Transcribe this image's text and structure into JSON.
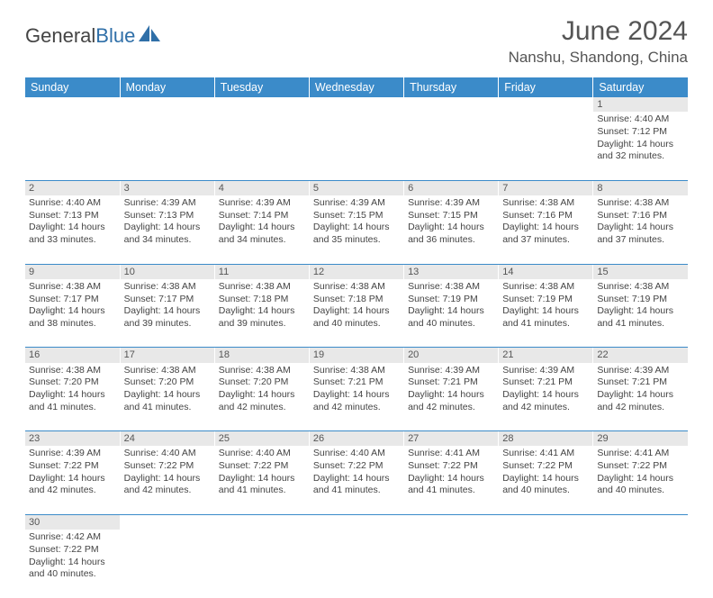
{
  "brand": {
    "part1": "General",
    "part2": "Blue"
  },
  "title": "June 2024",
  "location": "Nanshu, Shandong, China",
  "header_bg": "#3b8bc9",
  "header_fg": "#ffffff",
  "daynum_bg": "#e8e8e8",
  "divider_color": "#3b8bc9",
  "text_color": "#444444",
  "day_headers": [
    "Sunday",
    "Monday",
    "Tuesday",
    "Wednesday",
    "Thursday",
    "Friday",
    "Saturday"
  ],
  "weeks": [
    [
      null,
      null,
      null,
      null,
      null,
      null,
      {
        "n": "1",
        "sr": "4:40 AM",
        "ss": "7:12 PM",
        "dl": "14 hours and 32 minutes."
      }
    ],
    [
      {
        "n": "2",
        "sr": "4:40 AM",
        "ss": "7:13 PM",
        "dl": "14 hours and 33 minutes."
      },
      {
        "n": "3",
        "sr": "4:39 AM",
        "ss": "7:13 PM",
        "dl": "14 hours and 34 minutes."
      },
      {
        "n": "4",
        "sr": "4:39 AM",
        "ss": "7:14 PM",
        "dl": "14 hours and 34 minutes."
      },
      {
        "n": "5",
        "sr": "4:39 AM",
        "ss": "7:15 PM",
        "dl": "14 hours and 35 minutes."
      },
      {
        "n": "6",
        "sr": "4:39 AM",
        "ss": "7:15 PM",
        "dl": "14 hours and 36 minutes."
      },
      {
        "n": "7",
        "sr": "4:38 AM",
        "ss": "7:16 PM",
        "dl": "14 hours and 37 minutes."
      },
      {
        "n": "8",
        "sr": "4:38 AM",
        "ss": "7:16 PM",
        "dl": "14 hours and 37 minutes."
      }
    ],
    [
      {
        "n": "9",
        "sr": "4:38 AM",
        "ss": "7:17 PM",
        "dl": "14 hours and 38 minutes."
      },
      {
        "n": "10",
        "sr": "4:38 AM",
        "ss": "7:17 PM",
        "dl": "14 hours and 39 minutes."
      },
      {
        "n": "11",
        "sr": "4:38 AM",
        "ss": "7:18 PM",
        "dl": "14 hours and 39 minutes."
      },
      {
        "n": "12",
        "sr": "4:38 AM",
        "ss": "7:18 PM",
        "dl": "14 hours and 40 minutes."
      },
      {
        "n": "13",
        "sr": "4:38 AM",
        "ss": "7:19 PM",
        "dl": "14 hours and 40 minutes."
      },
      {
        "n": "14",
        "sr": "4:38 AM",
        "ss": "7:19 PM",
        "dl": "14 hours and 41 minutes."
      },
      {
        "n": "15",
        "sr": "4:38 AM",
        "ss": "7:19 PM",
        "dl": "14 hours and 41 minutes."
      }
    ],
    [
      {
        "n": "16",
        "sr": "4:38 AM",
        "ss": "7:20 PM",
        "dl": "14 hours and 41 minutes."
      },
      {
        "n": "17",
        "sr": "4:38 AM",
        "ss": "7:20 PM",
        "dl": "14 hours and 41 minutes."
      },
      {
        "n": "18",
        "sr": "4:38 AM",
        "ss": "7:20 PM",
        "dl": "14 hours and 42 minutes."
      },
      {
        "n": "19",
        "sr": "4:38 AM",
        "ss": "7:21 PM",
        "dl": "14 hours and 42 minutes."
      },
      {
        "n": "20",
        "sr": "4:39 AM",
        "ss": "7:21 PM",
        "dl": "14 hours and 42 minutes."
      },
      {
        "n": "21",
        "sr": "4:39 AM",
        "ss": "7:21 PM",
        "dl": "14 hours and 42 minutes."
      },
      {
        "n": "22",
        "sr": "4:39 AM",
        "ss": "7:21 PM",
        "dl": "14 hours and 42 minutes."
      }
    ],
    [
      {
        "n": "23",
        "sr": "4:39 AM",
        "ss": "7:22 PM",
        "dl": "14 hours and 42 minutes."
      },
      {
        "n": "24",
        "sr": "4:40 AM",
        "ss": "7:22 PM",
        "dl": "14 hours and 42 minutes."
      },
      {
        "n": "25",
        "sr": "4:40 AM",
        "ss": "7:22 PM",
        "dl": "14 hours and 41 minutes."
      },
      {
        "n": "26",
        "sr": "4:40 AM",
        "ss": "7:22 PM",
        "dl": "14 hours and 41 minutes."
      },
      {
        "n": "27",
        "sr": "4:41 AM",
        "ss": "7:22 PM",
        "dl": "14 hours and 41 minutes."
      },
      {
        "n": "28",
        "sr": "4:41 AM",
        "ss": "7:22 PM",
        "dl": "14 hours and 40 minutes."
      },
      {
        "n": "29",
        "sr": "4:41 AM",
        "ss": "7:22 PM",
        "dl": "14 hours and 40 minutes."
      }
    ],
    [
      {
        "n": "30",
        "sr": "4:42 AM",
        "ss": "7:22 PM",
        "dl": "14 hours and 40 minutes."
      },
      null,
      null,
      null,
      null,
      null,
      null
    ]
  ],
  "labels": {
    "sunrise": "Sunrise:",
    "sunset": "Sunset:",
    "daylight": "Daylight:"
  }
}
